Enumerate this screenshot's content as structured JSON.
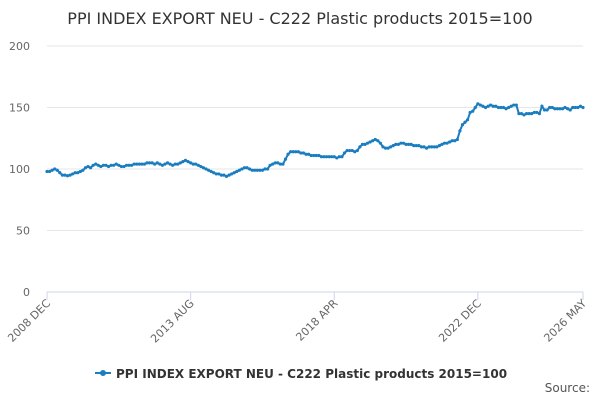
{
  "chart_data": {
    "type": "line",
    "title": "PPI INDEX EXPORT NEU - C222 Plastic products 2015=100",
    "source": "Source:",
    "categories": [
      "2008 DEC",
      null,
      null,
      null,
      null,
      null,
      null,
      null,
      null,
      null,
      null,
      null,
      null,
      null,
      null,
      null,
      null,
      null,
      null,
      null,
      null,
      null,
      null,
      null,
      null,
      null,
      null,
      null,
      null,
      null,
      null,
      null,
      null,
      null,
      null,
      null,
      null,
      null,
      null,
      null,
      null,
      null,
      null,
      null,
      null,
      null,
      null,
      null,
      null,
      null,
      null,
      null,
      null,
      null,
      null,
      null,
      "2013 AUG",
      null,
      null,
      null,
      null,
      null,
      null,
      null,
      null,
      null,
      null,
      null,
      null,
      null,
      null,
      null,
      null,
      null,
      null,
      null,
      null,
      null,
      null,
      null,
      null,
      null,
      null,
      null,
      null,
      null,
      null,
      null,
      null,
      null,
      null,
      null,
      null,
      null,
      null,
      null,
      null,
      null,
      null,
      null,
      null,
      null,
      null,
      null,
      null,
      null,
      null,
      null,
      null,
      null,
      null,
      null,
      "2018 APR",
      null,
      null,
      null,
      null,
      null,
      null,
      null,
      null,
      null,
      null,
      null,
      null,
      null,
      null,
      null,
      null,
      null,
      null,
      null,
      null,
      null,
      null,
      null,
      null,
      null,
      null,
      null,
      null,
      null,
      null,
      null,
      null,
      null,
      null,
      null,
      null,
      null,
      null,
      null,
      null,
      null,
      null,
      null,
      null,
      null,
      null,
      null,
      null,
      null,
      null,
      null,
      null,
      null,
      null,
      null,
      "2022 DEC",
      null,
      null,
      null,
      null,
      null,
      null,
      null,
      null,
      null,
      null,
      null,
      null,
      null,
      null,
      null,
      null,
      null,
      null,
      null,
      null,
      null,
      null,
      null,
      null,
      null,
      null,
      null,
      null,
      null,
      null,
      null,
      null,
      null,
      null,
      null,
      null,
      null,
      null,
      null,
      null,
      "2026 MAY"
    ],
    "series": [
      {
        "name": "PPI INDEX EXPORT NEU - C222 Plastic products 2015=100",
        "color": "#1a7dc0",
        "values": [
          98,
          98,
          99,
          100,
          99,
          97,
          95,
          95,
          94.5,
          95,
          96,
          97,
          97,
          98,
          99,
          101,
          102,
          101,
          103,
          104,
          103,
          102,
          103,
          103,
          102,
          103,
          103,
          104,
          103,
          102,
          102,
          103,
          103,
          103,
          104,
          104,
          104,
          104,
          104,
          105,
          105,
          105,
          104,
          105,
          104,
          103,
          104,
          105,
          104,
          103,
          104,
          104,
          105,
          106,
          107,
          106,
          105,
          104,
          104,
          103,
          102,
          101,
          100,
          99,
          98,
          97,
          96,
          96,
          95,
          95,
          94,
          95,
          96,
          97,
          98,
          99,
          100,
          101,
          101,
          100,
          99,
          99,
          99,
          99,
          99,
          100,
          100,
          103,
          104,
          105,
          105,
          104,
          104,
          108,
          112,
          114,
          114,
          114,
          114,
          113,
          113,
          112,
          112,
          111,
          111,
          111,
          111,
          110,
          110,
          110,
          110,
          110,
          110,
          109,
          110,
          110,
          113,
          115,
          115,
          115,
          114,
          115,
          118,
          120,
          120,
          121,
          122,
          123,
          124,
          123,
          121,
          118,
          117,
          117,
          118,
          119,
          120,
          120,
          121,
          121,
          120,
          120,
          120,
          119,
          119,
          119,
          118,
          118,
          117,
          118,
          118,
          118,
          118,
          119,
          120,
          121,
          121,
          122,
          123,
          123,
          124,
          131,
          136,
          138,
          140,
          146,
          147,
          150,
          153,
          152,
          151,
          150,
          151,
          152,
          151,
          151,
          150,
          150,
          150,
          149,
          150,
          151,
          152,
          152,
          145,
          145,
          144,
          145,
          145,
          145,
          146,
          146,
          145,
          151,
          148,
          148,
          150,
          150,
          149,
          149,
          149,
          149,
          150,
          149,
          148,
          150,
          150,
          150,
          151,
          150
        ]
      }
    ],
    "ylim": [
      0,
      200
    ],
    "yticks": [
      0,
      50,
      100,
      150,
      200
    ],
    "grid": true
  }
}
